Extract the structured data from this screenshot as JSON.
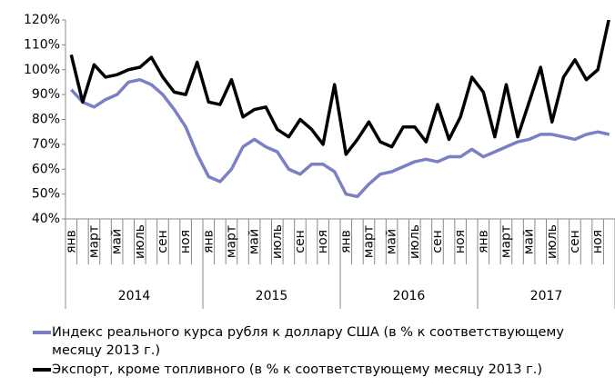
{
  "chart_data": {
    "type": "line",
    "categories": [
      "янв",
      null,
      "март",
      null,
      "май",
      null,
      "июль",
      null,
      "сен",
      null,
      "ноя",
      null,
      "янв",
      null,
      "март",
      null,
      "май",
      null,
      "июль",
      null,
      "сен",
      null,
      "ноя",
      null,
      "янв",
      null,
      "март",
      null,
      "май",
      null,
      "июль",
      null,
      "сен",
      null,
      "ноя",
      null,
      "янв",
      null,
      "март",
      null,
      "май",
      null,
      "июль",
      null,
      "сен",
      null,
      "ноя",
      null
    ],
    "x_groups": [
      "2014",
      "2015",
      "2016",
      "2017"
    ],
    "ylim": [
      40,
      120
    ],
    "yticks": [
      {
        "value": 40,
        "label": "40%"
      },
      {
        "value": 50,
        "label": "50%"
      },
      {
        "value": 60,
        "label": "60%"
      },
      {
        "value": 70,
        "label": "70%"
      },
      {
        "value": 80,
        "label": "80%"
      },
      {
        "value": 90,
        "label": "90%"
      },
      {
        "value": 100,
        "label": "100%"
      },
      {
        "value": 110,
        "label": "110%"
      },
      {
        "value": 120,
        "label": "120%"
      }
    ],
    "grid": false,
    "legend": "bottom",
    "series": [
      {
        "name": "Индекс реального курса рубля к доллару США (в % к соответствующему месяцу 2013 г.)",
        "color": "#7b7fc6",
        "values": [
          92,
          87,
          85,
          88,
          90,
          95,
          96,
          94,
          90,
          84,
          77,
          66,
          57,
          55,
          60,
          69,
          72,
          69,
          67,
          60,
          58,
          62,
          62,
          59,
          50,
          49,
          54,
          58,
          59,
          61,
          63,
          64,
          63,
          65,
          65,
          68,
          65,
          67,
          69,
          71,
          72,
          74,
          74,
          73,
          72,
          74,
          75,
          74
        ]
      },
      {
        "name": "Экспорт, кроме топливного (в % к соответствующему месяцу 2013 г.)",
        "color": "#000000",
        "values": [
          106,
          87,
          102,
          97,
          98,
          100,
          101,
          105,
          97,
          91,
          90,
          103,
          87,
          86,
          96,
          81,
          84,
          85,
          76,
          73,
          80,
          76,
          70,
          94,
          66,
          72,
          79,
          71,
          69,
          77,
          77,
          71,
          86,
          72,
          81,
          97,
          91,
          73,
          94,
          73,
          87,
          101,
          79,
          97,
          104,
          96,
          100,
          121
        ]
      }
    ]
  }
}
